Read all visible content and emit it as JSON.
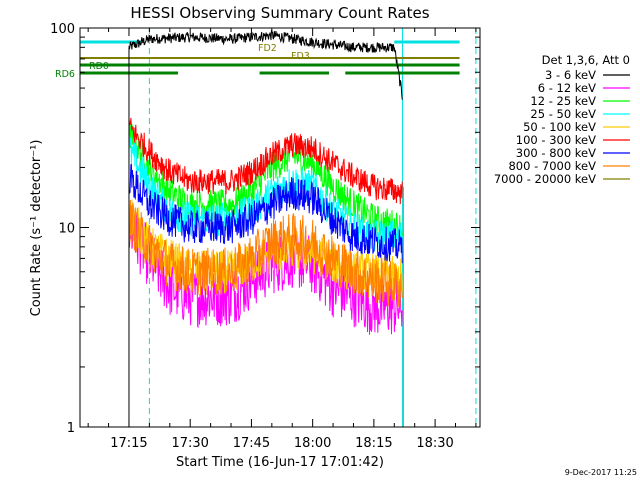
{
  "chart_data": {
    "type": "line",
    "title": "HESSI Observing Summary Count Rates",
    "xlabel": "Start Time (16-Jun-17 17:01:42)",
    "ylabel": "Count Rate (s⁻¹ detector⁻¹)",
    "yscale": "log",
    "ylim": [
      1,
      100
    ],
    "xlim": [
      "17:03",
      "18:41"
    ],
    "x_ticks": [
      "17:15",
      "17:30",
      "17:45",
      "18:00",
      "18:15",
      "18:30"
    ],
    "y_ticks": [
      "1",
      "10",
      "100"
    ],
    "grid": false,
    "legend_position": "right",
    "legend_title": "Det 1,3,6, Att 0",
    "footer_date": "9-Dec-2017 11:25",
    "flag_bars": [
      {
        "label": "RD0",
        "color": "#008000",
        "segments": [
          [
            "17:01",
            "18:36"
          ]
        ]
      },
      {
        "label": "RD6",
        "color": "#008000",
        "segments": [
          [
            "17:02",
            "17:27"
          ],
          [
            "17:47",
            "18:04"
          ],
          [
            "18:08",
            "18:36"
          ]
        ]
      },
      {
        "label": "FD2",
        "color": "#808000",
        "segments": [
          [
            "17:02",
            "18:36"
          ]
        ]
      },
      {
        "label": "FD3",
        "color": "#808000",
        "segments": []
      },
      {
        "label": "",
        "color": "#00e0e0",
        "segments": [
          [
            "17:02",
            "17:18"
          ],
          [
            "18:20",
            "18:36"
          ]
        ]
      }
    ],
    "vertical_lines": [
      {
        "time": "17:03",
        "style": "solid",
        "color": "#00e0e0"
      },
      {
        "time": "17:20",
        "style": "dashed",
        "color": "#00e0e0"
      },
      {
        "time": "18:22",
        "style": "solid",
        "color": "#00e0e0"
      },
      {
        "time": "18:40",
        "style": "dashed",
        "color": "#00e0e0"
      }
    ],
    "series": [
      {
        "name": "3 - 6 keV",
        "color": "#000000",
        "x": [
          "17:15",
          "17:20",
          "17:30",
          "17:40",
          "17:50",
          "18:00",
          "18:10",
          "18:20",
          "18:22"
        ],
        "values": [
          80,
          88,
          90,
          88,
          92,
          85,
          80,
          80,
          45
        ]
      },
      {
        "name": "6 - 12 keV",
        "color": "#ff00ff",
        "x": [
          "17:15",
          "17:20",
          "17:25",
          "17:30",
          "17:40",
          "17:45",
          "17:50",
          "17:55",
          "18:00",
          "18:05",
          "18:10",
          "18:15",
          "18:22"
        ],
        "values": [
          10,
          7,
          5,
          4.5,
          4.5,
          5.5,
          6.5,
          7,
          6.5,
          5,
          4.5,
          4,
          4
        ]
      },
      {
        "name": "12 - 25 keV",
        "color": "#00ff00",
        "x": [
          "17:15",
          "17:20",
          "17:25",
          "17:30",
          "17:40",
          "17:45",
          "17:50",
          "17:55",
          "18:00",
          "18:05",
          "18:10",
          "18:15",
          "18:22"
        ],
        "values": [
          30,
          20,
          15,
          13,
          13,
          15,
          20,
          23,
          21,
          16,
          13,
          11,
          10
        ]
      },
      {
        "name": "25 - 50 keV",
        "color": "#00ffff",
        "x": [
          "17:15",
          "17:20",
          "17:25",
          "17:30",
          "17:40",
          "17:45",
          "17:50",
          "17:55",
          "18:00",
          "18:05",
          "18:10",
          "18:15",
          "18:22"
        ],
        "values": [
          25,
          16,
          12,
          11,
          11,
          12,
          15,
          17,
          16,
          12,
          10,
          9,
          9
        ]
      },
      {
        "name": "50 - 100 keV",
        "color": "#ffcc00",
        "x": [
          "17:15",
          "17:20",
          "17:30",
          "17:40",
          "17:50",
          "18:00",
          "18:10",
          "18:22"
        ],
        "values": [
          12,
          8,
          6,
          6,
          7.5,
          7.5,
          6,
          5.5
        ]
      },
      {
        "name": "100 - 300 keV",
        "color": "#ff0000",
        "x": [
          "17:15",
          "17:20",
          "17:25",
          "17:30",
          "17:40",
          "17:45",
          "17:50",
          "17:55",
          "18:00",
          "18:05",
          "18:10",
          "18:15",
          "18:22"
        ],
        "values": [
          32,
          24,
          19,
          17,
          17,
          19,
          23,
          26,
          25,
          21,
          18,
          16,
          15
        ]
      },
      {
        "name": "300 - 800 keV",
        "color": "#0000ff",
        "x": [
          "17:15",
          "17:20",
          "17:25",
          "17:30",
          "17:40",
          "17:45",
          "17:50",
          "17:55",
          "18:00",
          "18:05",
          "18:10",
          "18:15",
          "18:22"
        ],
        "values": [
          18,
          13,
          11,
          10,
          10,
          11,
          13,
          15,
          14,
          11,
          9,
          8.5,
          8
        ]
      },
      {
        "name": "800 - 7000 keV",
        "color": "#ff8000",
        "x": [
          "17:15",
          "17:20",
          "17:25",
          "17:30",
          "17:40",
          "17:45",
          "17:50",
          "17:55",
          "18:00",
          "18:05",
          "18:10",
          "18:15",
          "18:22"
        ],
        "values": [
          11,
          8,
          6.5,
          6,
          6,
          7,
          8.5,
          9,
          8.5,
          7,
          6,
          5.5,
          5
        ]
      },
      {
        "name": "7000 - 20000 keV",
        "color": "#808000",
        "x": [],
        "values": []
      }
    ]
  }
}
